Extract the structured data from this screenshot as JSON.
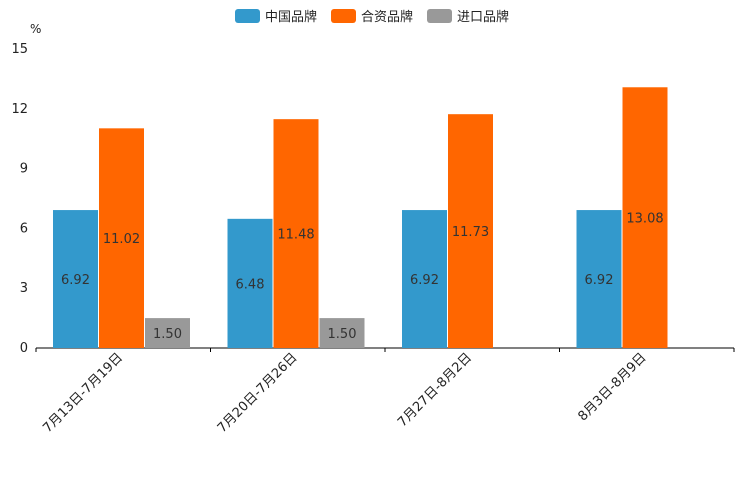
{
  "chart_data": {
    "type": "bar",
    "unit": "%",
    "categories": [
      "7月13日-7月19日",
      "7月20日-7月26日",
      "7月27日-8月2日",
      "8月3日-8月9日"
    ],
    "series": [
      {
        "name": "中国品牌",
        "color": "#3399cc",
        "values": [
          6.92,
          6.48,
          6.92,
          6.92
        ],
        "labels": [
          "6.92",
          "6.48",
          "6.92",
          "6.92"
        ]
      },
      {
        "name": "合资品牌",
        "color": "#ff6600",
        "values": [
          11.02,
          11.48,
          11.73,
          13.08
        ],
        "labels": [
          "11.02",
          "11.48",
          "11.73",
          "13.08"
        ]
      },
      {
        "name": "进口品牌",
        "color": "#999999",
        "values": [
          1.5,
          1.5,
          null,
          null
        ],
        "labels": [
          "1.50",
          "1.50",
          null,
          null
        ]
      }
    ],
    "ylim": [
      0,
      15
    ],
    "yticks": [
      0,
      3,
      6,
      9,
      12,
      15
    ],
    "ytick_labels": [
      "0",
      "3",
      "6",
      "9",
      "12",
      "15"
    ],
    "legend_position": "top-center"
  }
}
